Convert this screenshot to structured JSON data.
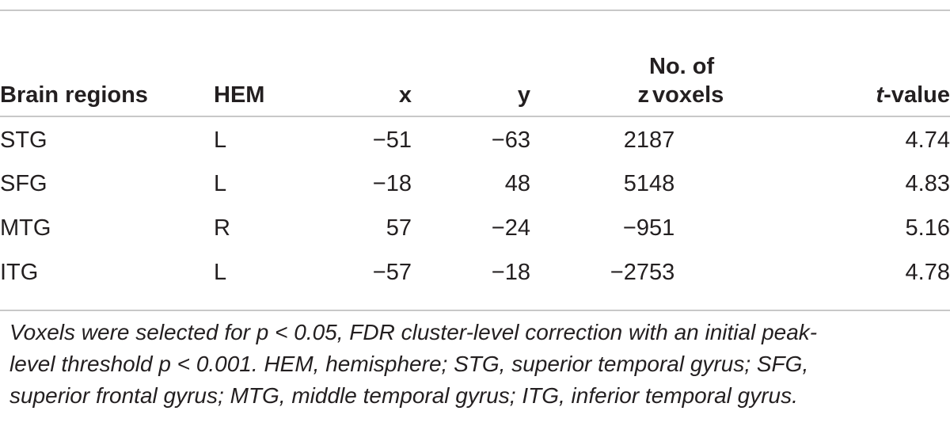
{
  "table": {
    "headers": {
      "region": "Brain regions",
      "hem": "HEM",
      "x": "x",
      "y": "y",
      "z": "z",
      "voxels_line1": "No. of",
      "voxels_line2": "voxels",
      "t_italic": "t",
      "t_rest": "-value"
    },
    "rows": [
      {
        "region": "STG",
        "hem": "L",
        "x": "−51",
        "y": "−63",
        "z": "21",
        "voxels": "87",
        "t": "4.74"
      },
      {
        "region": "SFG",
        "hem": "L",
        "x": "−18",
        "y": "48",
        "z": "51",
        "voxels": "48",
        "t": "4.83"
      },
      {
        "region": "MTG",
        "hem": "R",
        "x": "57",
        "y": "−24",
        "z": "−9",
        "voxels": "51",
        "t": "5.16"
      },
      {
        "region": "ITG",
        "hem": "L",
        "x": "−57",
        "y": "−18",
        "z": "−27",
        "voxels": "53",
        "t": "4.78"
      }
    ]
  },
  "footnote": {
    "line1": "Voxels were selected for p < 0.05, FDR cluster-level correction with an initial peak-",
    "line2": "level threshold p < 0.001. HEM, hemisphere; STG, superior temporal gyrus; SFG,",
    "line3": "superior frontal gyrus; MTG, middle temporal gyrus; ITG, inferior temporal gyrus."
  }
}
